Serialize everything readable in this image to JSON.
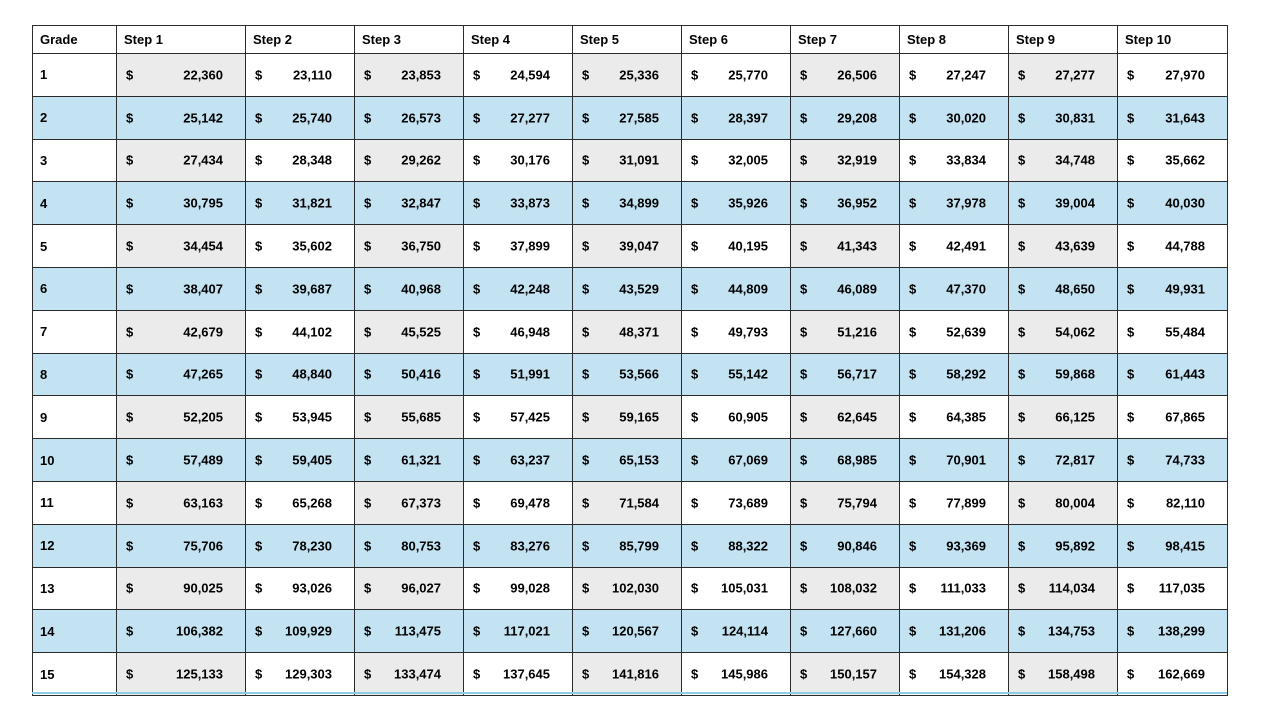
{
  "table": {
    "headers": [
      "Grade",
      "Step 1",
      "Step 2",
      "Step 3",
      "Step 4",
      "Step 5",
      "Step 6",
      "Step 7",
      "Step 8",
      "Step 9",
      "Step 10"
    ],
    "currency_symbol": "$",
    "colors": {
      "band_row": "#c3e2f2",
      "shaded_column": "#ebebeb",
      "border": "#2b2b2b"
    },
    "rows": [
      {
        "grade": "1",
        "values": [
          "22,360",
          "23,110",
          "23,853",
          "24,594",
          "25,336",
          "25,770",
          "26,506",
          "27,247",
          "27,277",
          "27,970"
        ]
      },
      {
        "grade": "2",
        "values": [
          "25,142",
          "25,740",
          "26,573",
          "27,277",
          "27,585",
          "28,397",
          "29,208",
          "30,020",
          "30,831",
          "31,643"
        ]
      },
      {
        "grade": "3",
        "values": [
          "27,434",
          "28,348",
          "29,262",
          "30,176",
          "31,091",
          "32,005",
          "32,919",
          "33,834",
          "34,748",
          "35,662"
        ]
      },
      {
        "grade": "4",
        "values": [
          "30,795",
          "31,821",
          "32,847",
          "33,873",
          "34,899",
          "35,926",
          "36,952",
          "37,978",
          "39,004",
          "40,030"
        ]
      },
      {
        "grade": "5",
        "values": [
          "34,454",
          "35,602",
          "36,750",
          "37,899",
          "39,047",
          "40,195",
          "41,343",
          "42,491",
          "43,639",
          "44,788"
        ]
      },
      {
        "grade": "6",
        "values": [
          "38,407",
          "39,687",
          "40,968",
          "42,248",
          "43,529",
          "44,809",
          "46,089",
          "47,370",
          "48,650",
          "49,931"
        ]
      },
      {
        "grade": "7",
        "values": [
          "42,679",
          "44,102",
          "45,525",
          "46,948",
          "48,371",
          "49,793",
          "51,216",
          "52,639",
          "54,062",
          "55,484"
        ]
      },
      {
        "grade": "8",
        "values": [
          "47,265",
          "48,840",
          "50,416",
          "51,991",
          "53,566",
          "55,142",
          "56,717",
          "58,292",
          "59,868",
          "61,443"
        ]
      },
      {
        "grade": "9",
        "values": [
          "52,205",
          "53,945",
          "55,685",
          "57,425",
          "59,165",
          "60,905",
          "62,645",
          "64,385",
          "66,125",
          "67,865"
        ]
      },
      {
        "grade": "10",
        "values": [
          "57,489",
          "59,405",
          "61,321",
          "63,237",
          "65,153",
          "67,069",
          "68,985",
          "70,901",
          "72,817",
          "74,733"
        ]
      },
      {
        "grade": "11",
        "values": [
          "63,163",
          "65,268",
          "67,373",
          "69,478",
          "71,584",
          "73,689",
          "75,794",
          "77,899",
          "80,004",
          "82,110"
        ]
      },
      {
        "grade": "12",
        "values": [
          "75,706",
          "78,230",
          "80,753",
          "83,276",
          "85,799",
          "88,322",
          "90,846",
          "93,369",
          "95,892",
          "98,415"
        ]
      },
      {
        "grade": "13",
        "values": [
          "90,025",
          "93,026",
          "96,027",
          "99,028",
          "102,030",
          "105,031",
          "108,032",
          "111,033",
          "114,034",
          "117,035"
        ]
      },
      {
        "grade": "14",
        "values": [
          "106,382",
          "109,929",
          "113,475",
          "117,021",
          "120,567",
          "124,114",
          "127,660",
          "131,206",
          "134,753",
          "138,299"
        ]
      },
      {
        "grade": "15",
        "values": [
          "125,133",
          "129,303",
          "133,474",
          "137,645",
          "141,816",
          "145,986",
          "150,157",
          "154,328",
          "158,498",
          "162,669"
        ]
      }
    ]
  }
}
